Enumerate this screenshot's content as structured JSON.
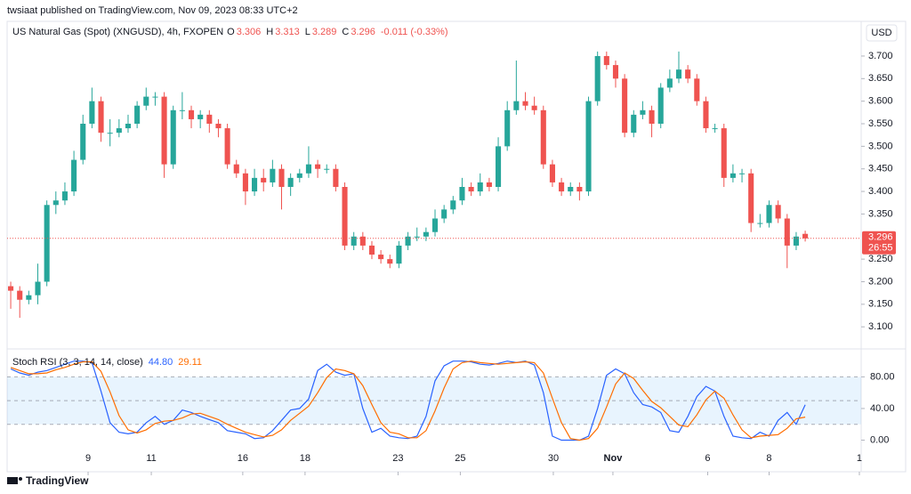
{
  "header": {
    "publisher": "twsiaat published on TradingView.com, Nov 09, 2023 08:33 UTC+2"
  },
  "chart_data": [
    {
      "type": "candlestick",
      "title": "US Natural Gas (Spot) (XNGUSD), 4h, FXOPEN",
      "ohlc_labels": [
        "O",
        "H",
        "L",
        "C"
      ],
      "change": "-0.011 (-0.33%)",
      "countdown": "26:55",
      "currency": "USD",
      "up_color": "#26a69a",
      "down_color": "#ef5350",
      "open": [
        3.19,
        3.18,
        3.16,
        3.17,
        3.2,
        3.37,
        3.38,
        3.4,
        3.47,
        3.55,
        3.6,
        3.53,
        3.53,
        3.54,
        3.55,
        3.59,
        3.61,
        3.61,
        3.46,
        3.58,
        3.58,
        3.56,
        3.57,
        3.55,
        3.54,
        3.46,
        3.44,
        3.4,
        3.43,
        3.42,
        3.45,
        3.41,
        3.43,
        3.44,
        3.46,
        3.45,
        3.45,
        3.41,
        3.28,
        3.3,
        3.28,
        3.26,
        3.25,
        3.24,
        3.28,
        3.3,
        3.3,
        3.31,
        3.34,
        3.36,
        3.38,
        3.41,
        3.4,
        3.42,
        3.41,
        3.5,
        3.58,
        3.6,
        3.59,
        3.58,
        3.46,
        3.42,
        3.4,
        3.41,
        3.4,
        3.6,
        3.7,
        3.68,
        3.65,
        3.53,
        3.57,
        3.58,
        3.55,
        3.63,
        3.65,
        3.67,
        3.65,
        3.6,
        3.54,
        3.54,
        3.43,
        3.44,
        3.44,
        3.33,
        3.33,
        3.37,
        3.34,
        3.28,
        3.306
      ],
      "high": [
        3.2,
        3.19,
        3.18,
        3.24,
        3.38,
        3.4,
        3.42,
        3.49,
        3.57,
        3.63,
        3.61,
        3.56,
        3.56,
        3.57,
        3.6,
        3.63,
        3.62,
        3.62,
        3.59,
        3.62,
        3.59,
        3.58,
        3.58,
        3.56,
        3.55,
        3.47,
        3.45,
        3.45,
        3.45,
        3.47,
        3.46,
        3.44,
        3.45,
        3.5,
        3.47,
        3.46,
        3.46,
        3.42,
        3.31,
        3.31,
        3.29,
        3.27,
        3.26,
        3.29,
        3.31,
        3.32,
        3.32,
        3.36,
        3.37,
        3.39,
        3.43,
        3.42,
        3.44,
        3.43,
        3.52,
        3.6,
        3.69,
        3.62,
        3.61,
        3.59,
        3.47,
        3.43,
        3.42,
        3.42,
        3.61,
        3.71,
        3.71,
        3.69,
        3.66,
        3.58,
        3.6,
        3.59,
        3.64,
        3.67,
        3.71,
        3.68,
        3.66,
        3.61,
        3.55,
        3.55,
        3.46,
        3.45,
        3.45,
        3.35,
        3.38,
        3.38,
        3.35,
        3.31,
        3.313
      ],
      "low": [
        3.14,
        3.12,
        3.15,
        3.15,
        3.19,
        3.35,
        3.37,
        3.39,
        3.46,
        3.54,
        3.51,
        3.5,
        3.52,
        3.53,
        3.54,
        3.58,
        3.59,
        3.43,
        3.45,
        3.56,
        3.54,
        3.54,
        3.53,
        3.52,
        3.45,
        3.43,
        3.37,
        3.39,
        3.4,
        3.41,
        3.36,
        3.39,
        3.42,
        3.43,
        3.43,
        3.44,
        3.4,
        3.27,
        3.27,
        3.27,
        3.25,
        3.24,
        3.23,
        3.23,
        3.27,
        3.29,
        3.29,
        3.3,
        3.33,
        3.35,
        3.37,
        3.39,
        3.39,
        3.4,
        3.4,
        3.49,
        3.57,
        3.58,
        3.57,
        3.45,
        3.41,
        3.39,
        3.39,
        3.38,
        3.39,
        3.59,
        3.67,
        3.63,
        3.52,
        3.52,
        3.56,
        3.52,
        3.54,
        3.62,
        3.64,
        3.64,
        3.59,
        3.53,
        3.53,
        3.41,
        3.42,
        3.42,
        3.31,
        3.32,
        3.32,
        3.33,
        3.23,
        3.27,
        3.289
      ],
      "close": [
        3.18,
        3.16,
        3.17,
        3.2,
        3.37,
        3.38,
        3.4,
        3.47,
        3.55,
        3.6,
        3.53,
        3.53,
        3.54,
        3.55,
        3.59,
        3.61,
        3.61,
        3.46,
        3.58,
        3.58,
        3.56,
        3.57,
        3.55,
        3.54,
        3.46,
        3.44,
        3.4,
        3.43,
        3.42,
        3.45,
        3.41,
        3.43,
        3.44,
        3.46,
        3.45,
        3.45,
        3.41,
        3.28,
        3.3,
        3.28,
        3.26,
        3.25,
        3.24,
        3.28,
        3.3,
        3.3,
        3.31,
        3.34,
        3.36,
        3.38,
        3.41,
        3.4,
        3.42,
        3.41,
        3.5,
        3.58,
        3.6,
        3.59,
        3.58,
        3.46,
        3.42,
        3.4,
        3.41,
        3.4,
        3.6,
        3.7,
        3.68,
        3.65,
        3.53,
        3.57,
        3.58,
        3.55,
        3.63,
        3.65,
        3.67,
        3.65,
        3.6,
        3.54,
        3.54,
        3.43,
        3.44,
        3.44,
        3.33,
        3.33,
        3.37,
        3.34,
        3.28,
        3.3,
        3.296
      ],
      "ylim": [
        3.055,
        3.765
      ],
      "yticks": [
        {
          "value": 3.1,
          "label": "3.100"
        },
        {
          "value": 3.15,
          "label": "3.150"
        },
        {
          "value": 3.2,
          "label": "3.200"
        },
        {
          "value": 3.25,
          "label": "3.250"
        },
        {
          "value": 3.35,
          "label": "3.350"
        },
        {
          "value": 3.4,
          "label": "3.400"
        },
        {
          "value": 3.45,
          "label": "3.450"
        },
        {
          "value": 3.5,
          "label": "3.500"
        },
        {
          "value": 3.55,
          "label": "3.550"
        },
        {
          "value": 3.6,
          "label": "3.600"
        },
        {
          "value": 3.65,
          "label": "3.650"
        },
        {
          "value": 3.7,
          "label": "3.700"
        }
      ],
      "xlim": [
        -0.4,
        94.2
      ],
      "xticks": [
        {
          "value": 8.57,
          "label": "9"
        },
        {
          "value": 15.57,
          "label": "11"
        },
        {
          "value": 25.7,
          "label": "16"
        },
        {
          "value": 32.6,
          "label": "18"
        },
        {
          "value": 42.9,
          "label": "23"
        },
        {
          "value": 49.8,
          "label": "25"
        },
        {
          "value": 60.1,
          "label": "30"
        },
        {
          "value": 66.7,
          "label": "Nov"
        },
        {
          "value": 77.2,
          "label": "6"
        },
        {
          "value": 84.0,
          "label": "8"
        },
        {
          "value": 94.0,
          "label": "1"
        }
      ]
    },
    {
      "type": "line",
      "title": "Stoch RSI (3, 3, 14, 14, close)",
      "series": [
        {
          "color": "#2962ff",
          "last_label": "44.80",
          "values": [
            90,
            85,
            82,
            86,
            88,
            92,
            96,
            100,
            100,
            98,
            62,
            22,
            10,
            8,
            10,
            22,
            30,
            20,
            25,
            38,
            35,
            30,
            26,
            22,
            12,
            10,
            8,
            2,
            3,
            12,
            25,
            38,
            40,
            52,
            88,
            96,
            86,
            82,
            84,
            40,
            10,
            15,
            5,
            3,
            2,
            5,
            30,
            75,
            94,
            100,
            100,
            99,
            96,
            95,
            97,
            100,
            98,
            100,
            95,
            60,
            5,
            0,
            0,
            0,
            5,
            40,
            82,
            90,
            84,
            60,
            45,
            42,
            35,
            12,
            10,
            30,
            55,
            68,
            62,
            30,
            5,
            3,
            2,
            10,
            5,
            25,
            35,
            20,
            44.8
          ]
        },
        {
          "color": "#ff6d00",
          "last_label": "29.11",
          "values": [
            92,
            88,
            84,
            84,
            85,
            89,
            92,
            96,
            99,
            99,
            87,
            61,
            31,
            13,
            9,
            13,
            21,
            24,
            25,
            28,
            33,
            34,
            30,
            26,
            20,
            15,
            10,
            7,
            4,
            6,
            13,
            25,
            34,
            43,
            60,
            79,
            90,
            88,
            84,
            69,
            45,
            22,
            10,
            8,
            3,
            3,
            12,
            37,
            66,
            90,
            98,
            100,
            98,
            97,
            96,
            97,
            98,
            99,
            98,
            85,
            53,
            22,
            2,
            0,
            2,
            15,
            42,
            71,
            85,
            78,
            63,
            49,
            41,
            30,
            19,
            17,
            32,
            51,
            62,
            53,
            32,
            13,
            3,
            5,
            6,
            7,
            15,
            27,
            29.11
          ]
        }
      ],
      "bands": [
        20,
        80
      ],
      "midline": 50,
      "band_color": "#2196f3",
      "ylim": [
        -40,
        112
      ],
      "yticks": [
        {
          "value": 0,
          "label": "0.00"
        },
        {
          "value": 40,
          "label": "40.00"
        },
        {
          "value": 80,
          "label": "80.00"
        }
      ]
    }
  ],
  "footer": {
    "brand": "TradingView"
  }
}
